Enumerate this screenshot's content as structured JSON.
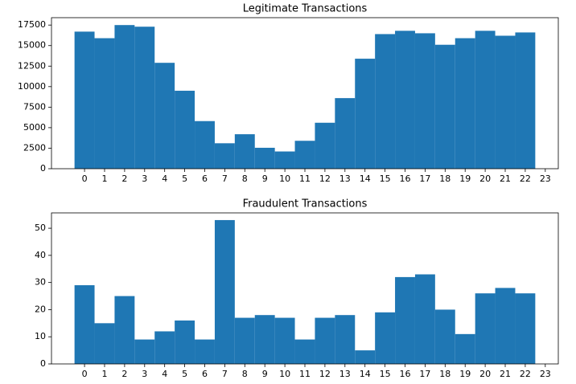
{
  "chart_data": [
    {
      "type": "histogram",
      "title": "Legitimate Transactions",
      "color": "#1f77b4",
      "bins": [
        -0.5,
        0.5,
        1.5,
        2.5,
        3.5,
        4.5,
        5.5,
        6.5,
        7.5,
        8.5,
        9.5,
        10.5,
        11.5,
        12.5,
        13.5,
        14.5,
        15.5,
        16.5,
        17.5,
        18.5,
        19.5,
        20.5,
        21.5,
        22.5
      ],
      "values": [
        16700,
        15900,
        17500,
        17300,
        12900,
        9500,
        5800,
        3100,
        4200,
        2550,
        2100,
        3400,
        5600,
        8600,
        13400,
        16400,
        16800,
        16500,
        15100,
        15900,
        16800,
        16200,
        16600
      ],
      "xlim": [
        -1.65,
        23.65
      ],
      "ylim": [
        0,
        18400
      ],
      "xticks": [
        0,
        1,
        2,
        3,
        4,
        5,
        6,
        7,
        8,
        9,
        10,
        11,
        12,
        13,
        14,
        15,
        16,
        17,
        18,
        19,
        20,
        21,
        22,
        23
      ],
      "yticks": [
        0,
        2500,
        5000,
        7500,
        10000,
        12500,
        15000,
        17500
      ]
    },
    {
      "type": "histogram",
      "title": "Fraudulent Transactions",
      "color": "#1f77b4",
      "bins": [
        -0.5,
        0.5,
        1.5,
        2.5,
        3.5,
        4.5,
        5.5,
        6.5,
        7.5,
        8.5,
        9.5,
        10.5,
        11.5,
        12.5,
        13.5,
        14.5,
        15.5,
        16.5,
        17.5,
        18.5,
        19.5,
        20.5,
        21.5,
        22.5
      ],
      "values": [
        29,
        15,
        25,
        9,
        12,
        16,
        9,
        53,
        17,
        18,
        17,
        9,
        17,
        18,
        5,
        19,
        32,
        33,
        20,
        11,
        26,
        28,
        26
      ],
      "xlim": [
        -1.65,
        23.65
      ],
      "ylim": [
        0,
        55.65
      ],
      "xticks": [
        0,
        1,
        2,
        3,
        4,
        5,
        6,
        7,
        8,
        9,
        10,
        11,
        12,
        13,
        14,
        15,
        16,
        17,
        18,
        19,
        20,
        21,
        22,
        23
      ],
      "yticks": [
        0,
        10,
        20,
        30,
        40,
        50
      ]
    }
  ]
}
